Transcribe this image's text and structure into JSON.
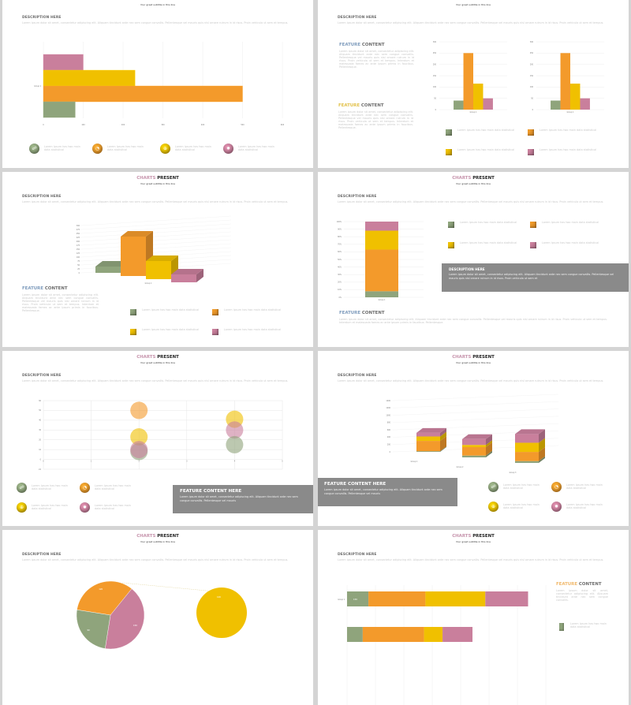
{
  "colors": {
    "green": "#8fa47c",
    "orange": "#f39a2b",
    "yellow": "#f0c000",
    "pink": "#c97f9c",
    "box": "#8a8a8a",
    "feature_blue": "#7f9cbd",
    "feature_gold": "#e2c14a",
    "feature_orange": "#f0b86a"
  },
  "common": {
    "title_a": "CHARTS",
    "title_b": "PRESENT",
    "subtitle": "Your great subtitle in this line",
    "desc_heading": "DESCRIPTION  HERE",
    "desc_body": "Lorem ipsum dolor sit amet, consectetur adipiscing elit. Aliquam tincidunt ante nec sem congue convallis. Pellentesque vel mauris quis nisl ornare rutrum in id risus. Proin vehicula ut sem et tempus."
  },
  "legend_text": "Lorem Ipsum has two main data statistical",
  "legend_icons": [
    "hierarchy-icon",
    "pie-icon",
    "globe-icon",
    "gear-icon"
  ],
  "feature": {
    "word_a": "FEATURE",
    "word_b": "CONTENT",
    "body": "Lorem ipsum dolor sit amet, consectetur adipiscing elit. Aliquam tincidunt ante nec sem congue convallis. Pellentesque vel mauris quis nisl ornare rutrum in id risus. Proin vehicula ut sem et tempus. Interdum et malesuada fames ac ante ipsum primis in faucibus. Pellentesque.",
    "short_body": "Lorem ipsum dolor sit amet, consectetur adipiscing elit. Aliquam tincidunt ante nec sem congue convallis."
  },
  "feature_here": {
    "title": "FEATURE  CONTENT  HERE",
    "body": "Lorem ipsum dolor sit amet, consectetur adipiscing elit. Aliquam tincidunt ante nec sem congue convallis. Pellentesque vel mauris"
  },
  "desc_box": {
    "title": "DESCRIPTION HERE",
    "body": "Lorem ipsum dolor sit amet, consectetur adipiscing elit. Aliquam tincidunt ante nec sem congue convallis. Pellentesque vel mauris quis nisl ornare rutrum in id risus. Proin vehicula ut sem et"
  },
  "slides": [
    {
      "type": "hbar",
      "category": "Group 1",
      "series": [
        "pink",
        "yellow",
        "orange",
        "green"
      ],
      "values": [
        100,
        230,
        500,
        80
      ],
      "xlim": [
        0,
        600
      ],
      "ticks": [
        "0",
        "100",
        "200",
        "300",
        "400",
        "500",
        "600"
      ]
    },
    {
      "type": "vbar-pair",
      "category": "Group 1",
      "series": [
        "green",
        "orange",
        "yellow",
        "pink"
      ],
      "values": [
        40,
        250,
        115,
        50
      ],
      "ylim": [
        0,
        300
      ],
      "ticks": [
        "0",
        "50",
        "100",
        "150",
        "200",
        "250",
        "300"
      ]
    },
    {
      "type": "bar3d",
      "category": "Group 1",
      "series": [
        "green",
        "orange",
        "yellow",
        "pink"
      ],
      "values": [
        40,
        250,
        115,
        50
      ],
      "ylim": [
        0,
        300
      ],
      "ticks": [
        "0",
        "25",
        "50",
        "75",
        "100",
        "125",
        "150",
        "175",
        "200",
        "225",
        "250",
        "275",
        "300"
      ]
    },
    {
      "type": "stacked100",
      "category": "Group 1",
      "series": [
        "green",
        "orange",
        "yellow",
        "pink"
      ],
      "values": [
        8,
        55,
        25,
        12
      ],
      "ticks": [
        "0%",
        "10%",
        "20%",
        "30%",
        "40%",
        "50%",
        "60%",
        "70%",
        "80%",
        "90%",
        "100%"
      ]
    },
    {
      "type": "bubble",
      "xlim": [
        0,
        5
      ],
      "ylim": [
        -10,
        60
      ],
      "xticks": [
        "0",
        "1",
        "2",
        "3",
        "4",
        "5"
      ],
      "yticks": [
        "-10",
        "0",
        "10",
        "20",
        "30",
        "40",
        "50",
        "60"
      ],
      "points": [
        {
          "s": "orange",
          "x": 2,
          "y": 50
        },
        {
          "s": "yellow",
          "x": 2,
          "y": 23
        },
        {
          "s": "green",
          "x": 2,
          "y": 8
        },
        {
          "s": "pink",
          "x": 2,
          "y": 10
        },
        {
          "s": "yellow",
          "x": 4,
          "y": 41
        },
        {
          "s": "pink",
          "x": 4,
          "y": 30
        },
        {
          "s": "green",
          "x": 4,
          "y": 15
        }
      ]
    },
    {
      "type": "stacked3d",
      "categories": [
        "Group 1",
        "Group 2",
        "Group 3"
      ],
      "series": [
        "green",
        "orange",
        "yellow",
        "pink"
      ],
      "values": [
        [
          20,
          280,
          120,
          100
        ],
        [
          50,
          230,
          60,
          160
        ],
        [
          50,
          250,
          250,
          240
        ]
      ],
      "ylim": [
        0,
        1400
      ],
      "ticks": [
        "0",
        "200",
        "400",
        "600",
        "800",
        "1000",
        "1200",
        "1400"
      ]
    },
    {
      "type": "pie",
      "series": [
        "orange",
        "pink",
        "green"
      ],
      "values": [
        120,
        150,
        90
      ],
      "labels": [
        "120",
        "150",
        "90"
      ],
      "second": {
        "s": "yellow",
        "label": "100"
      }
    },
    {
      "type": "stackedh",
      "category": "Group 1",
      "series": [
        "green",
        "orange",
        "yellow",
        "pink"
      ],
      "rows": [
        [
          150,
          400,
          420,
          300
        ],
        [
          110,
          430,
          130,
          210
        ]
      ],
      "labels": [
        "150",
        ""
      ],
      "xlim": [
        0,
        1400
      ]
    }
  ]
}
